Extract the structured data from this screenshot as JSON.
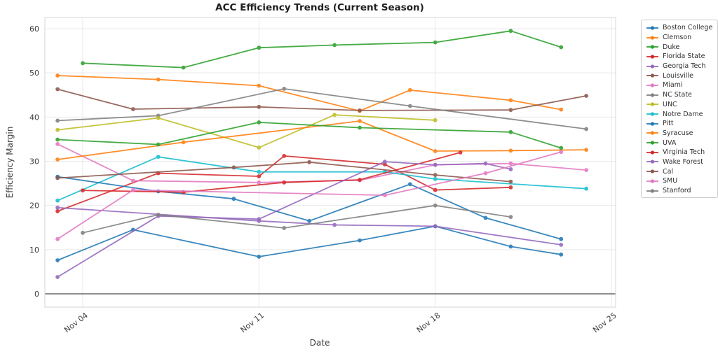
{
  "chart_data": {
    "type": "line",
    "title": "ACC Efficiency Trends (Current Season)",
    "xlabel": "Date",
    "ylabel": "Efficiency Margin",
    "x_unit": "day of November",
    "x_tick_days": [
      4,
      11,
      18,
      25
    ],
    "x_tick_labels": [
      "Nov 04",
      "Nov 11",
      "Nov 18",
      "Nov 25"
    ],
    "y_ticks": [
      0,
      10,
      20,
      30,
      40,
      50,
      60
    ],
    "ylim": [
      -3.1,
      62.5
    ],
    "xlim_days": [
      2.5,
      25.2
    ],
    "grid": true,
    "zero_line": true,
    "legend_position": "outside-right",
    "style": {
      "grid_color": "#e9e9e9",
      "spine_color": "#d4d4d4",
      "zero_line_color": "#4a4a4a",
      "tick_text_color": "#3d3d3d",
      "title_color": "#1f1f1f",
      "background": "#ffffff"
    },
    "series": [
      {
        "name": "Boston College",
        "color": "#1f77b4",
        "points": [
          [
            3,
            7.6
          ],
          [
            6,
            14.5
          ],
          [
            11,
            8.4
          ],
          [
            15,
            12.1
          ],
          [
            18,
            15.3
          ],
          [
            21,
            10.7
          ],
          [
            23,
            8.9
          ]
        ]
      },
      {
        "name": "Clemson",
        "color": "#ff7f0e",
        "points": [
          [
            3,
            49.4
          ],
          [
            7,
            48.5
          ],
          [
            11,
            47.1
          ],
          [
            15,
            41.4
          ],
          [
            17,
            46.1
          ],
          [
            21,
            43.8
          ],
          [
            23,
            41.7
          ]
        ]
      },
      {
        "name": "Duke",
        "color": "#2ca02c",
        "points": [
          [
            4,
            52.2
          ],
          [
            8,
            51.2
          ],
          [
            11,
            55.7
          ],
          [
            14,
            56.3
          ],
          [
            18,
            56.9
          ],
          [
            21,
            59.5
          ],
          [
            23,
            55.8
          ]
        ]
      },
      {
        "name": "Florida State",
        "color": "#d62728",
        "points": [
          [
            3,
            18.7
          ],
          [
            7,
            27.3
          ],
          [
            11,
            26.6
          ],
          [
            12,
            31.2
          ],
          [
            16,
            29.3
          ],
          [
            18,
            23.5
          ],
          [
            21,
            24.1
          ]
        ]
      },
      {
        "name": "Georgia Tech",
        "color": "#9467bd",
        "points": [
          [
            3,
            19.5
          ],
          [
            11,
            16.5
          ],
          [
            14,
            15.6
          ],
          [
            18,
            15.3
          ],
          [
            23,
            11.1
          ]
        ]
      },
      {
        "name": "Louisville",
        "color": "#8c564b",
        "points": [
          [
            3,
            46.3
          ],
          [
            6,
            41.8
          ],
          [
            11,
            42.3
          ],
          [
            15,
            41.5
          ],
          [
            21,
            41.6
          ],
          [
            24,
            44.8
          ]
        ]
      },
      {
        "name": "Miami",
        "color": "#e377c2",
        "points": [
          [
            3,
            33.9
          ],
          [
            6,
            25.6
          ],
          [
            11,
            25.2
          ],
          [
            15,
            25.7
          ],
          [
            18,
            29.2
          ],
          [
            21,
            29.5
          ],
          [
            24,
            28.0
          ]
        ]
      },
      {
        "name": "NC State",
        "color": "#7f7f7f",
        "points": [
          [
            3,
            39.2
          ],
          [
            7,
            40.3
          ],
          [
            12,
            46.4
          ],
          [
            17,
            42.5
          ],
          [
            24,
            37.3
          ]
        ]
      },
      {
        "name": "UNC",
        "color": "#bcbd22",
        "points": [
          [
            3,
            37.1
          ],
          [
            7,
            39.8
          ],
          [
            11,
            33.1
          ],
          [
            14,
            40.5
          ],
          [
            18,
            39.3
          ]
        ]
      },
      {
        "name": "Notre Dame",
        "color": "#17becf",
        "points": [
          [
            3,
            21.1
          ],
          [
            7,
            31.0
          ],
          [
            11,
            27.6
          ],
          [
            16,
            27.6
          ],
          [
            18,
            26.0
          ],
          [
            24,
            23.8
          ]
        ]
      },
      {
        "name": "Pitt",
        "color": "#1f77b4",
        "points": [
          [
            3,
            26.5
          ],
          [
            7,
            23.2
          ],
          [
            10,
            21.5
          ],
          [
            13,
            16.5
          ],
          [
            17,
            24.8
          ],
          [
            20,
            17.2
          ],
          [
            23,
            12.4
          ]
        ]
      },
      {
        "name": "Syracuse",
        "color": "#ff7f0e",
        "points": [
          [
            3,
            30.4
          ],
          [
            8,
            34.3
          ],
          [
            15,
            39.1
          ],
          [
            18,
            32.3
          ],
          [
            21,
            32.4
          ],
          [
            24,
            32.6
          ]
        ]
      },
      {
        "name": "UVA",
        "color": "#2ca02c",
        "points": [
          [
            3,
            34.9
          ],
          [
            7,
            33.8
          ],
          [
            11,
            38.8
          ],
          [
            15,
            37.6
          ],
          [
            21,
            36.6
          ],
          [
            23,
            33.0
          ]
        ]
      },
      {
        "name": "Virginia Tech",
        "color": "#d62728",
        "points": [
          [
            4,
            23.4
          ],
          [
            8,
            23.0
          ],
          [
            12,
            25.2
          ],
          [
            15,
            25.8
          ],
          [
            19,
            32.0
          ]
        ]
      },
      {
        "name": "Wake Forest",
        "color": "#9467bd",
        "points": [
          [
            3,
            3.8
          ],
          [
            7,
            17.6
          ],
          [
            11,
            16.9
          ],
          [
            16,
            29.9
          ],
          [
            18,
            29.2
          ],
          [
            20,
            29.5
          ],
          [
            21,
            28.2
          ]
        ]
      },
      {
        "name": "Cal",
        "color": "#8c564b",
        "points": [
          [
            3,
            26.2
          ],
          [
            10,
            28.6
          ],
          [
            13,
            29.8
          ],
          [
            18,
            26.9
          ],
          [
            21,
            25.4
          ]
        ]
      },
      {
        "name": "SMU",
        "color": "#e377c2",
        "points": [
          [
            3,
            12.4
          ],
          [
            6,
            23.5
          ],
          [
            16,
            22.3
          ],
          [
            20,
            27.3
          ],
          [
            23,
            32.1
          ]
        ]
      },
      {
        "name": "Stanford",
        "color": "#7f7f7f",
        "points": [
          [
            4,
            13.8
          ],
          [
            7,
            17.9
          ],
          [
            12,
            14.9
          ],
          [
            18,
            20.0
          ],
          [
            21,
            17.4
          ]
        ]
      }
    ]
  }
}
